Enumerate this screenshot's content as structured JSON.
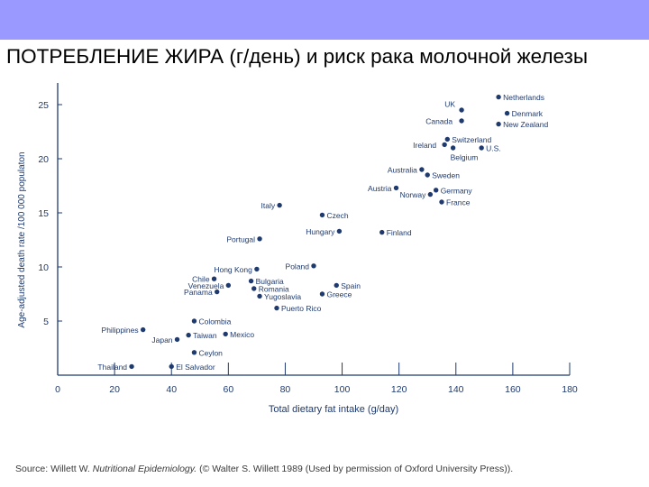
{
  "slide": {
    "title": "ПОТРЕБЛЕНИЕ ЖИРА (г/день) и риск рака молочной железы",
    "header_color": "#9999ff",
    "source_prefix": "Source: Willett W. ",
    "source_title": "Nutritional Epidemiology.",
    "source_suffix": " (© Walter S. Willett 1989 (Used by permission of Oxford University Press))."
  },
  "chart_data": {
    "type": "scatter",
    "title": "",
    "xlabel": "Total dietary fat intake (g/day)",
    "ylabel": "Age-adjusted death rate /100 000 populaton",
    "xlim": [
      0,
      180
    ],
    "ylim": [
      0,
      27
    ],
    "xticks": [
      0,
      20,
      40,
      60,
      80,
      100,
      120,
      140,
      160,
      180
    ],
    "yticks": [
      5,
      10,
      15,
      20,
      25
    ],
    "grid": false,
    "point_color": "#1f3a6e",
    "points": [
      {
        "label": "Netherlands",
        "x": 155,
        "y": 25.7
      },
      {
        "label": "UK",
        "x": 142,
        "y": 24.5
      },
      {
        "label": "Denmark",
        "x": 158,
        "y": 24.2
      },
      {
        "label": "Canada",
        "x": 142,
        "y": 23.5
      },
      {
        "label": "New Zealand",
        "x": 155,
        "y": 23.2
      },
      {
        "label": "Switzerland",
        "x": 137,
        "y": 21.8
      },
      {
        "label": "Ireland",
        "x": 136,
        "y": 21.3
      },
      {
        "label": "Belgium",
        "x": 139,
        "y": 21.0
      },
      {
        "label": "U.S.",
        "x": 149,
        "y": 21.0
      },
      {
        "label": "Australia",
        "x": 128,
        "y": 19.0
      },
      {
        "label": "Sweden",
        "x": 130,
        "y": 18.5
      },
      {
        "label": "Austria",
        "x": 119,
        "y": 17.3
      },
      {
        "label": "Germany",
        "x": 133,
        "y": 17.1
      },
      {
        "label": "Norway",
        "x": 131,
        "y": 16.7
      },
      {
        "label": "France",
        "x": 135,
        "y": 16.0
      },
      {
        "label": "Italy",
        "x": 78,
        "y": 15.7
      },
      {
        "label": "Czech",
        "x": 93,
        "y": 14.8
      },
      {
        "label": "Hungary",
        "x": 99,
        "y": 13.3
      },
      {
        "label": "Finland",
        "x": 114,
        "y": 13.2
      },
      {
        "label": "Portugal",
        "x": 71,
        "y": 12.6
      },
      {
        "label": "Poland",
        "x": 90,
        "y": 10.1
      },
      {
        "label": "Hong Kong",
        "x": 70,
        "y": 9.8
      },
      {
        "label": "Chile",
        "x": 55,
        "y": 8.9
      },
      {
        "label": "Bulgaria",
        "x": 68,
        "y": 8.7
      },
      {
        "label": "Venezuela",
        "x": 60,
        "y": 8.3
      },
      {
        "label": "Spain",
        "x": 98,
        "y": 8.3
      },
      {
        "label": "Romania",
        "x": 69,
        "y": 8.0
      },
      {
        "label": "Panama",
        "x": 56,
        "y": 7.7
      },
      {
        "label": "Greece",
        "x": 93,
        "y": 7.5
      },
      {
        "label": "Yugoslavia",
        "x": 71,
        "y": 7.3
      },
      {
        "label": "Puerto Rico",
        "x": 77,
        "y": 6.2
      },
      {
        "label": "Colombia",
        "x": 48,
        "y": 5.0
      },
      {
        "label": "Philippines",
        "x": 30,
        "y": 4.2
      },
      {
        "label": "Taiwan",
        "x": 46,
        "y": 3.7
      },
      {
        "label": "Mexico",
        "x": 59,
        "y": 3.8
      },
      {
        "label": "Japan",
        "x": 42,
        "y": 3.3
      },
      {
        "label": "Ceylon",
        "x": 48,
        "y": 2.1
      },
      {
        "label": "Thailand",
        "x": 26,
        "y": 0.8
      },
      {
        "label": "El Salvador",
        "x": 40,
        "y": 0.8
      }
    ]
  }
}
